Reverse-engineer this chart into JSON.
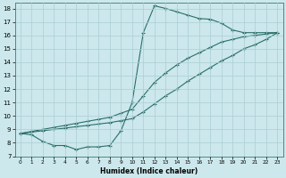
{
  "xlabel": "Humidex (Indice chaleur)",
  "bg_color": "#cce8ec",
  "line_color": "#2a6e68",
  "grid_color": "#aacdd4",
  "xlim": [
    -0.5,
    23.5
  ],
  "ylim": [
    7,
    18.4
  ],
  "xticks": [
    0,
    1,
    2,
    3,
    4,
    5,
    6,
    7,
    8,
    9,
    10,
    11,
    12,
    13,
    14,
    15,
    16,
    17,
    18,
    19,
    20,
    21,
    22,
    23
  ],
  "yticks": [
    7,
    8,
    9,
    10,
    11,
    12,
    13,
    14,
    15,
    16,
    17,
    18
  ],
  "curve1_x": [
    0,
    1,
    2,
    3,
    4,
    5,
    6,
    7,
    8,
    9,
    10,
    11,
    12,
    13,
    14,
    15,
    16,
    17,
    18,
    19,
    20,
    21,
    22,
    23
  ],
  "curve1_y": [
    8.7,
    8.6,
    8.1,
    7.8,
    7.8,
    7.5,
    7.7,
    7.7,
    7.8,
    8.9,
    11.0,
    16.2,
    18.2,
    18.0,
    17.75,
    17.5,
    17.25,
    17.2,
    16.9,
    16.4,
    16.2,
    16.2,
    16.2,
    16.2
  ],
  "curve2_x": [
    0,
    1,
    2,
    3,
    4,
    5,
    6,
    7,
    8,
    9,
    10,
    11,
    12,
    13,
    14,
    15,
    16,
    17,
    18,
    19,
    20,
    21,
    22,
    23
  ],
  "curve2_y": [
    8.7,
    8.85,
    9.0,
    9.15,
    9.3,
    9.45,
    9.6,
    9.75,
    9.9,
    10.2,
    10.5,
    11.5,
    12.5,
    13.2,
    13.8,
    14.3,
    14.7,
    15.1,
    15.5,
    15.7,
    15.9,
    16.0,
    16.1,
    16.2
  ],
  "curve3_x": [
    0,
    1,
    2,
    3,
    4,
    5,
    6,
    7,
    8,
    9,
    10,
    11,
    12,
    13,
    14,
    15,
    16,
    17,
    18,
    19,
    20,
    21,
    22,
    23
  ],
  "curve3_y": [
    8.7,
    8.8,
    8.9,
    9.0,
    9.1,
    9.2,
    9.3,
    9.4,
    9.5,
    9.65,
    9.8,
    10.3,
    10.9,
    11.5,
    12.0,
    12.6,
    13.1,
    13.6,
    14.1,
    14.5,
    15.0,
    15.3,
    15.7,
    16.2
  ]
}
